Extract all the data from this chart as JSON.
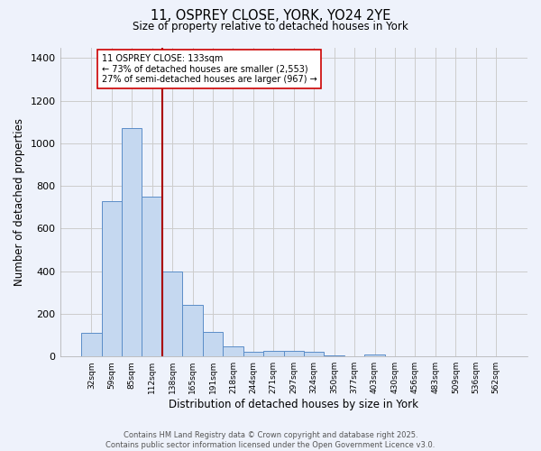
{
  "title_line1": "11, OSPREY CLOSE, YORK, YO24 2YE",
  "title_line2": "Size of property relative to detached houses in York",
  "xlabel": "Distribution of detached houses by size in York",
  "ylabel": "Number of detached properties",
  "bar_labels": [
    "32sqm",
    "59sqm",
    "85sqm",
    "112sqm",
    "138sqm",
    "165sqm",
    "191sqm",
    "218sqm",
    "244sqm",
    "271sqm",
    "297sqm",
    "324sqm",
    "350sqm",
    "377sqm",
    "403sqm",
    "430sqm",
    "456sqm",
    "483sqm",
    "509sqm",
    "536sqm",
    "562sqm"
  ],
  "bar_values": [
    110,
    730,
    1070,
    750,
    400,
    240,
    115,
    48,
    22,
    28,
    28,
    20,
    7,
    0,
    10,
    0,
    0,
    0,
    0,
    0,
    0
  ],
  "bar_color": "#c5d8f0",
  "bar_edge_color": "#5b8dc8",
  "vline_color": "#aa0000",
  "vline_x_idx": 4,
  "annotation_text": "11 OSPREY CLOSE: 133sqm\n← 73% of detached houses are smaller (2,553)\n27% of semi-detached houses are larger (967) →",
  "annotation_box_color": "#ffffff",
  "annotation_box_edge": "#cc0000",
  "ylim": [
    0,
    1450
  ],
  "yticks": [
    0,
    200,
    400,
    600,
    800,
    1000,
    1200,
    1400
  ],
  "grid_color": "#cccccc",
  "background_color": "#eef2fb",
  "footer_line1": "Contains HM Land Registry data © Crown copyright and database right 2025.",
  "footer_line2": "Contains public sector information licensed under the Open Government Licence v3.0."
}
